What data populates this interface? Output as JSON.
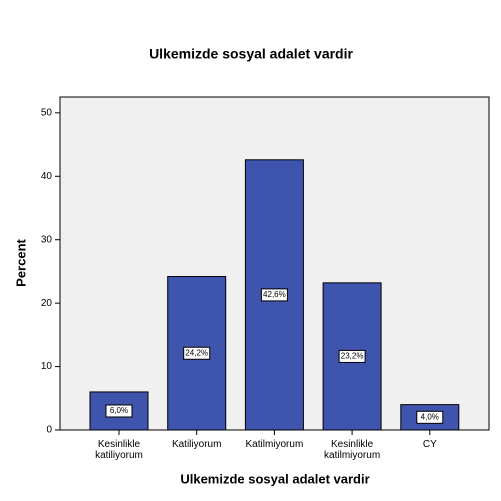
{
  "chart_data": {
    "type": "bar",
    "title": "Ulkemizde sosyal adalet vardir",
    "x_label": "Ulkemizde sosyal adalet vardir",
    "y_label": "Percent",
    "categories": [
      "Kesinlikle katiliyorum",
      "Katiliyorum",
      "Katilmiyorum",
      "Kesinlikle katilmiyorum",
      "CY"
    ],
    "values": [
      6.0,
      24.2,
      42.6,
      23.2,
      4.0
    ],
    "value_labels": [
      "6,0%",
      "24,2%",
      "42,6%",
      "23,2%",
      "4,0%"
    ],
    "color": "#3f54ad",
    "ylim": [
      0,
      52.5
    ],
    "yticks": [
      0,
      10,
      20,
      30,
      40,
      50
    ]
  }
}
